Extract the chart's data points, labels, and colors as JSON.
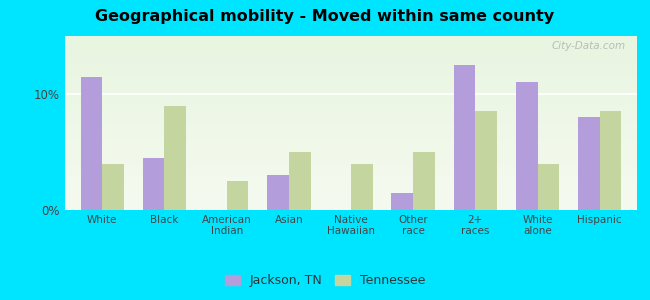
{
  "title": "Geographical mobility - Moved within same county",
  "categories": [
    "White",
    "Black",
    "American\nIndian",
    "Asian",
    "Native\nHawaiian",
    "Other\nrace",
    "2+\nraces",
    "White\nalone",
    "Hispanic"
  ],
  "jackson": [
    11.5,
    4.5,
    0.0,
    3.0,
    0.0,
    1.5,
    12.5,
    11.0,
    8.0
  ],
  "tennessee": [
    4.0,
    9.0,
    2.5,
    5.0,
    4.0,
    5.0,
    8.5,
    4.0,
    8.5
  ],
  "jackson_color": "#b39ddb",
  "tennessee_color": "#c5d5a0",
  "outer_bg": "#00e5ff",
  "ylim": [
    0,
    15
  ],
  "yticks": [
    0,
    10
  ],
  "ytick_labels": [
    "0%",
    "10%"
  ],
  "legend_jackson": "Jackson, TN",
  "legend_tennessee": "Tennessee",
  "watermark": "City-Data.com"
}
